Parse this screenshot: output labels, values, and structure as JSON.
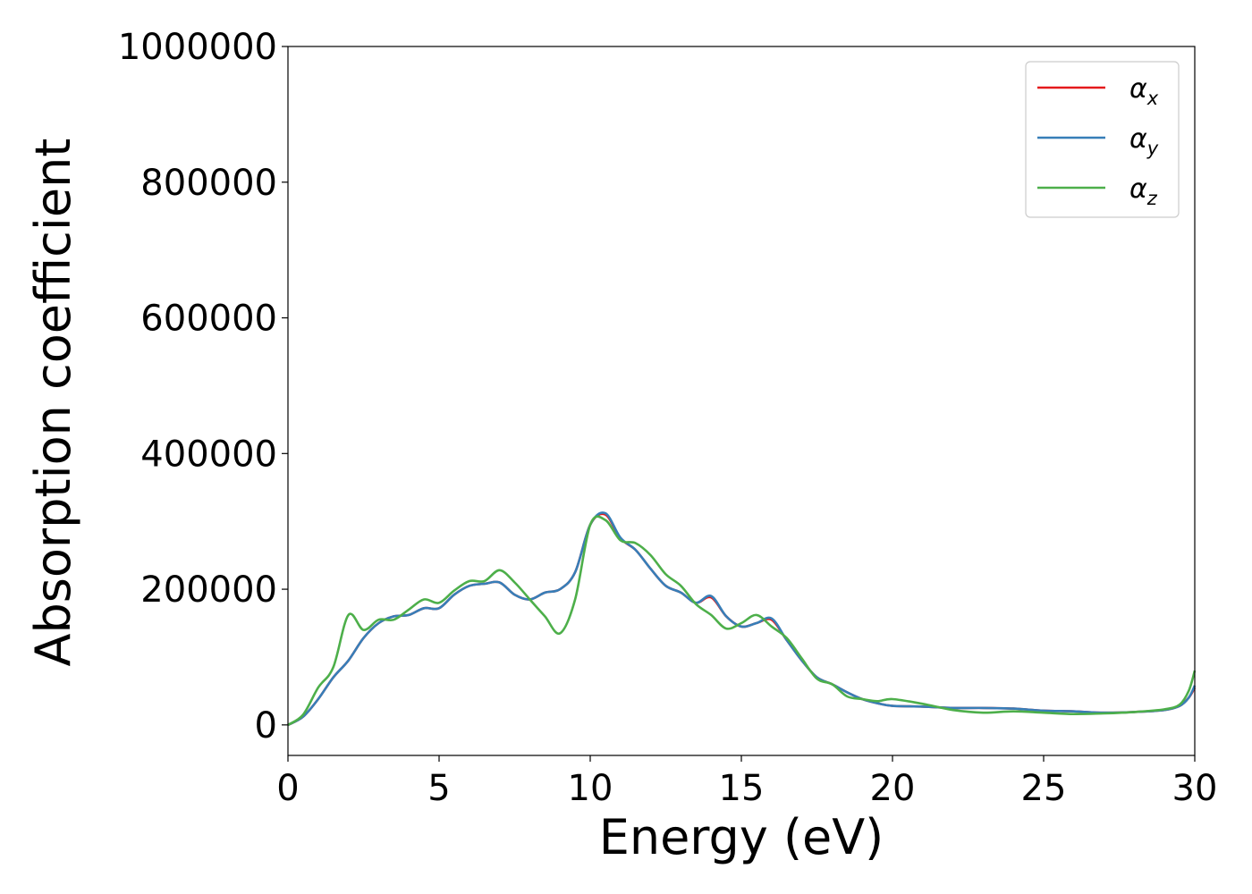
{
  "chart_data": {
    "type": "line",
    "title": "",
    "xlabel": "Energy (eV)",
    "ylabel": "Absorption coefficient",
    "xlim": [
      0,
      30
    ],
    "ylim": [
      -45000,
      1000000
    ],
    "xticks": [
      0,
      5,
      10,
      15,
      20,
      25,
      30
    ],
    "yticks": [
      0,
      200000,
      400000,
      600000,
      800000,
      1000000
    ],
    "grid": false,
    "legend_position": "top-right",
    "x": [
      0,
      0.5,
      1,
      1.5,
      2,
      2.5,
      3,
      3.5,
      4,
      4.5,
      5,
      5.5,
      6,
      6.5,
      7,
      7.5,
      8,
      8.5,
      9,
      9.5,
      10,
      10.5,
      11,
      11.5,
      12,
      12.5,
      13,
      13.5,
      14,
      14.5,
      15,
      15.5,
      16,
      16.5,
      17,
      17.5,
      18,
      18.5,
      19,
      19.5,
      20,
      21,
      22,
      23,
      24,
      25,
      26,
      27,
      28,
      29,
      29.5,
      29.8,
      30
    ],
    "series": [
      {
        "name": "αx",
        "base": "α",
        "sub": "x",
        "color": "#e41a1c",
        "values": [
          0,
          12000,
          38000,
          70000,
          95000,
          128000,
          150000,
          160000,
          162000,
          172000,
          172000,
          192000,
          205000,
          208000,
          210000,
          192000,
          185000,
          195000,
          200000,
          225000,
          295000,
          310000,
          275000,
          258000,
          230000,
          205000,
          195000,
          180000,
          188000,
          160000,
          145000,
          150000,
          155000,
          125000,
          95000,
          70000,
          60000,
          48000,
          38000,
          32000,
          28000,
          27000,
          25000,
          25000,
          24000,
          21000,
          20000,
          18000,
          19000,
          22000,
          28000,
          40000,
          55000
        ]
      },
      {
        "name": "αy",
        "base": "α",
        "sub": "y",
        "color": "#377eb8",
        "values": [
          0,
          12000,
          38000,
          70000,
          95000,
          128000,
          150000,
          160000,
          162000,
          172000,
          172000,
          192000,
          205000,
          208000,
          210000,
          192000,
          185000,
          195000,
          200000,
          225000,
          295000,
          312000,
          276000,
          258000,
          230000,
          205000,
          195000,
          180000,
          190000,
          160000,
          145000,
          150000,
          157000,
          125000,
          95000,
          70000,
          60000,
          48000,
          38000,
          32000,
          28000,
          27000,
          25000,
          25000,
          24000,
          21000,
          20000,
          18000,
          19000,
          22000,
          28000,
          40000,
          58000
        ]
      },
      {
        "name": "αz",
        "base": "α",
        "sub": "z",
        "color": "#4daf4a",
        "values": [
          0,
          15000,
          55000,
          85000,
          162000,
          140000,
          155000,
          155000,
          170000,
          185000,
          180000,
          198000,
          212000,
          212000,
          228000,
          210000,
          185000,
          160000,
          135000,
          185000,
          295000,
          302000,
          272000,
          268000,
          250000,
          222000,
          205000,
          178000,
          162000,
          142000,
          150000,
          162000,
          145000,
          128000,
          98000,
          68000,
          60000,
          42000,
          38000,
          35000,
          38000,
          31000,
          22000,
          18000,
          20000,
          18000,
          16000,
          17000,
          19000,
          23000,
          30000,
          50000,
          80000
        ]
      }
    ]
  }
}
